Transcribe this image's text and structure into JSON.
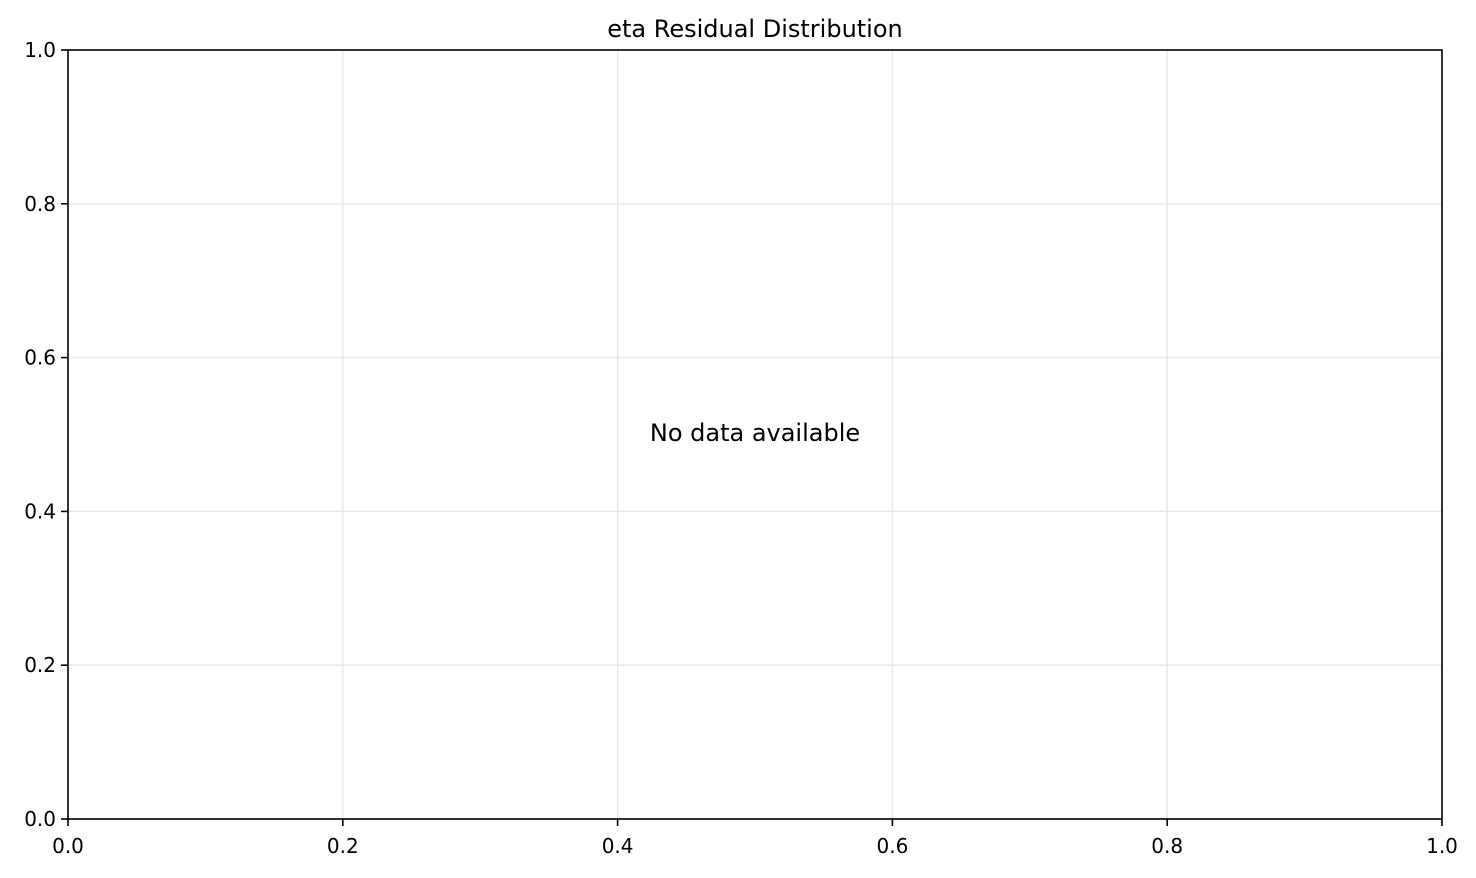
{
  "chart_data": {
    "type": "bar",
    "title": "eta Residual Distribution",
    "xlabel": "",
    "ylabel": "",
    "xlim": [
      0.0,
      1.0
    ],
    "ylim": [
      0.0,
      1.0
    ],
    "xticks": [
      "0.0",
      "0.2",
      "0.4",
      "0.6",
      "0.8",
      "1.0"
    ],
    "yticks": [
      "0.0",
      "0.2",
      "0.4",
      "0.6",
      "0.8",
      "1.0"
    ],
    "grid": true,
    "values": [],
    "empty_message": "No data available"
  }
}
